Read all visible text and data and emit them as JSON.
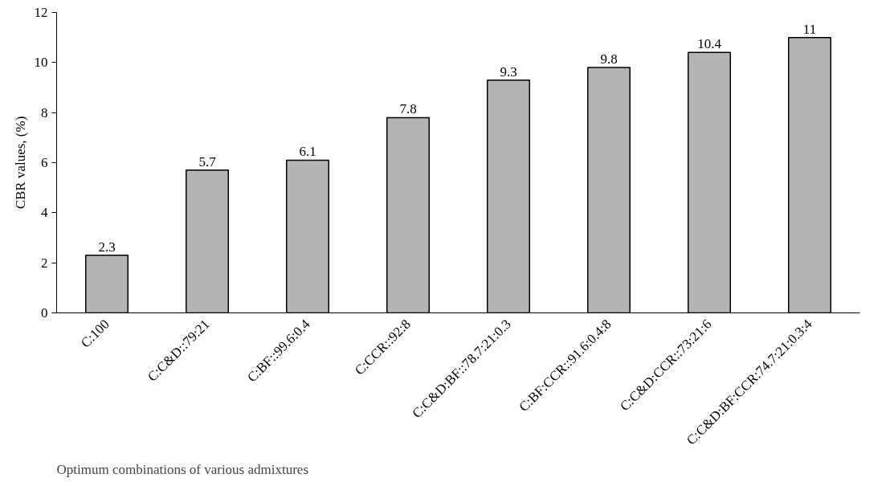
{
  "chart_data": {
    "type": "bar",
    "xlabel": "Optimum combinations of various admixtures",
    "ylabel": "CBR values, (%)",
    "categories": [
      "C:100",
      "C:C&D::79:21",
      "C:BF::99.6:0.4",
      "C:CCR::92:8",
      "C:C&D:BF::78.7:21:0.3",
      "C:BF:CCR::91.6:0.4:8",
      "C:C&D:CCR::73:21:6",
      "C:C&D:BF:CCR:74.7:21:0.3:4"
    ],
    "values": [
      2.3,
      5.7,
      6.1,
      7.8,
      9.3,
      9.8,
      10.4,
      11
    ],
    "color": "#b4b4b4",
    "ylim": [
      0,
      12
    ],
    "yticks": [
      0,
      2,
      4,
      6,
      8,
      10,
      12
    ],
    "grid": false,
    "data_labels": true
  }
}
